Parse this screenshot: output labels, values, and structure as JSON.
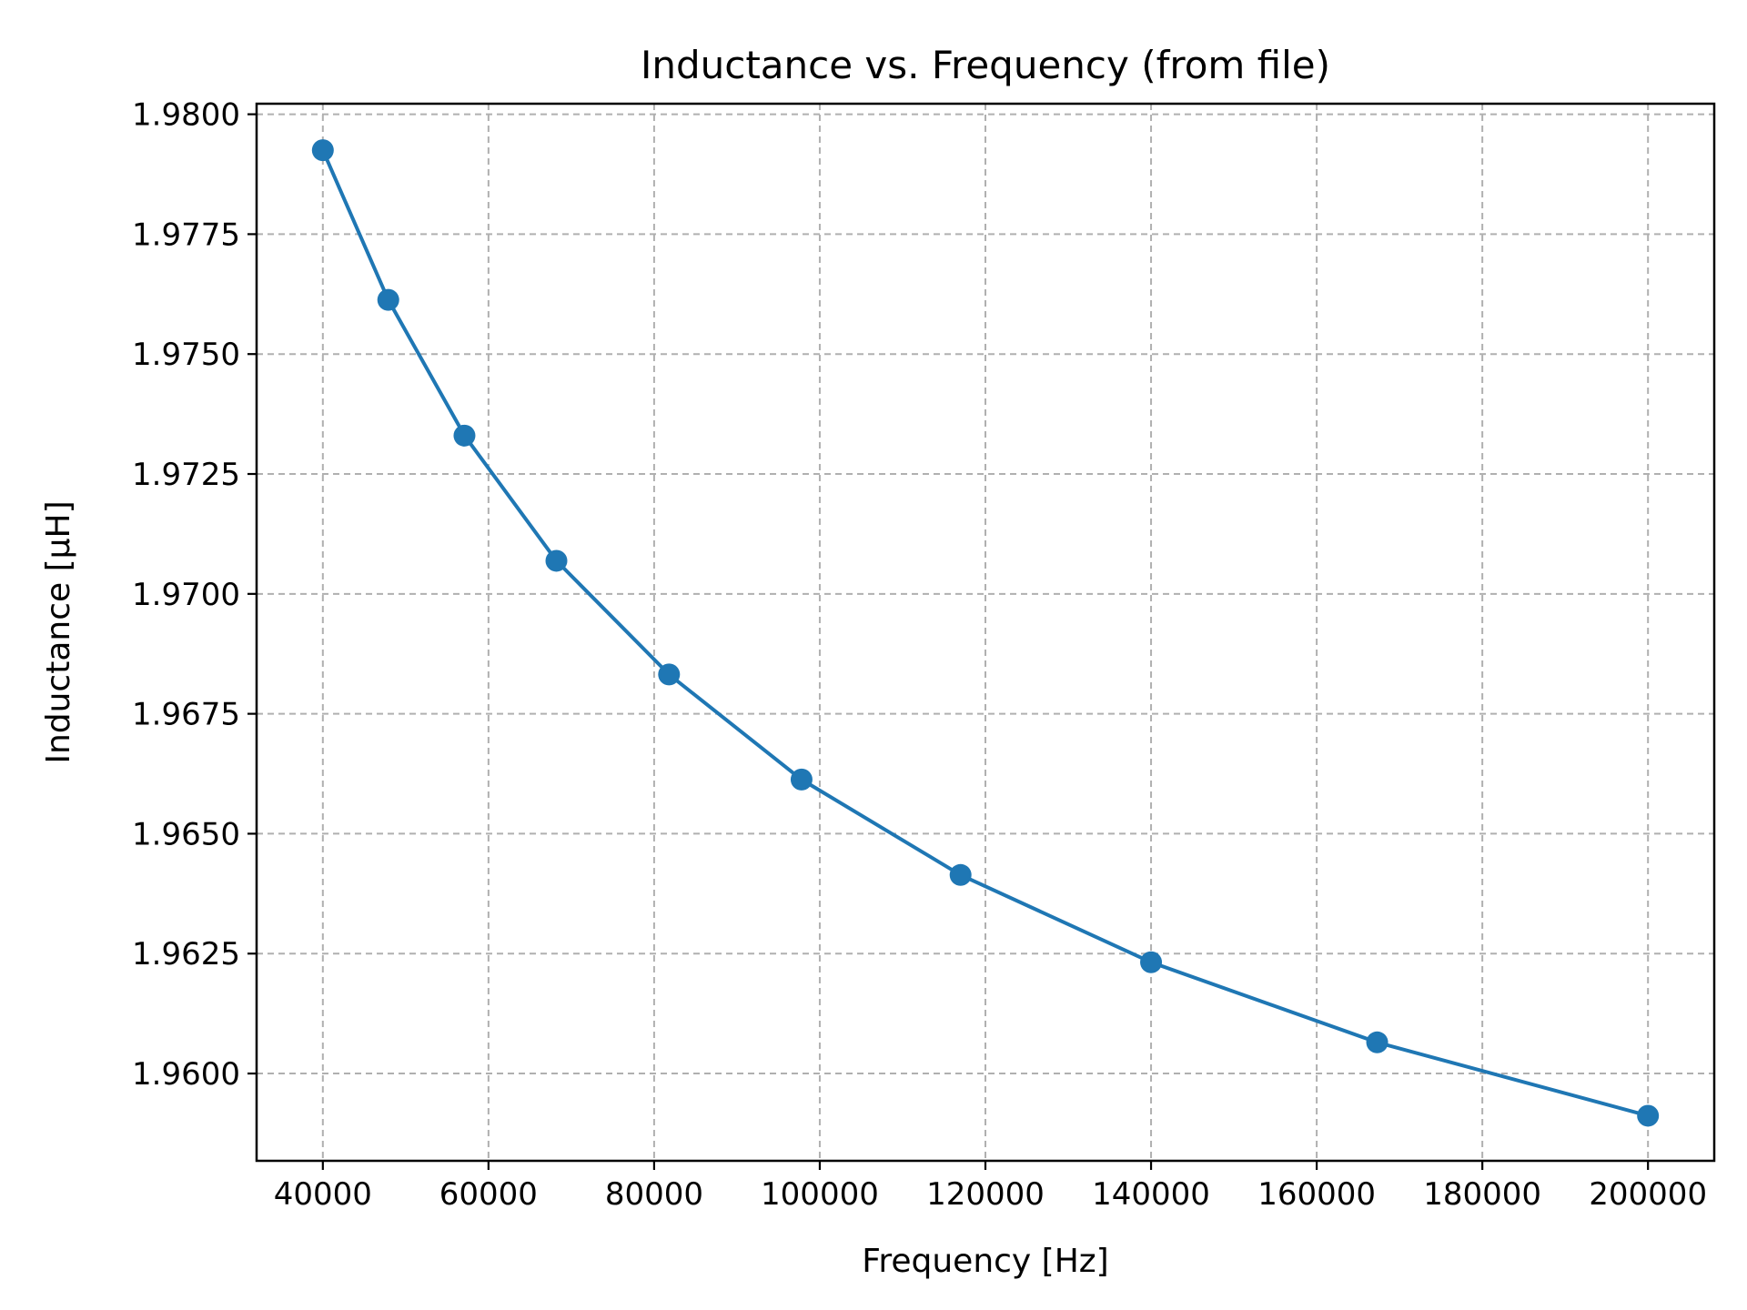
{
  "chart_data": {
    "type": "line",
    "title": "Inductance vs. Frequency (from file)",
    "xlabel": "Frequency [Hz]",
    "ylabel": "Inductance [µH]",
    "xlim": [
      32000,
      208000
    ],
    "ylim": [
      1.95818,
      1.98022
    ],
    "x_ticks": [
      40000,
      60000,
      80000,
      100000,
      120000,
      140000,
      160000,
      180000,
      200000
    ],
    "x_tick_labels": [
      "40000",
      "60000",
      "80000",
      "100000",
      "120000",
      "140000",
      "160000",
      "180000",
      "200000"
    ],
    "y_ticks": [
      1.96,
      1.9625,
      1.965,
      1.9675,
      1.97,
      1.9725,
      1.975,
      1.9775,
      1.98
    ],
    "y_tick_labels": [
      "1.9600",
      "1.9625",
      "1.9650",
      "1.9675",
      "1.9700",
      "1.9725",
      "1.9750",
      "1.9775",
      "1.9800"
    ],
    "grid": true,
    "series": [
      {
        "color": "#1f77b4",
        "marker": "circle",
        "x": [
          40000,
          47900,
          57100,
          68200,
          81800,
          97800,
          117000,
          140000,
          167300,
          200000
        ],
        "y": [
          1.97925,
          1.97613,
          1.9733,
          1.97069,
          1.96832,
          1.96613,
          1.96414,
          1.96232,
          1.96065,
          1.95912
        ]
      }
    ]
  }
}
